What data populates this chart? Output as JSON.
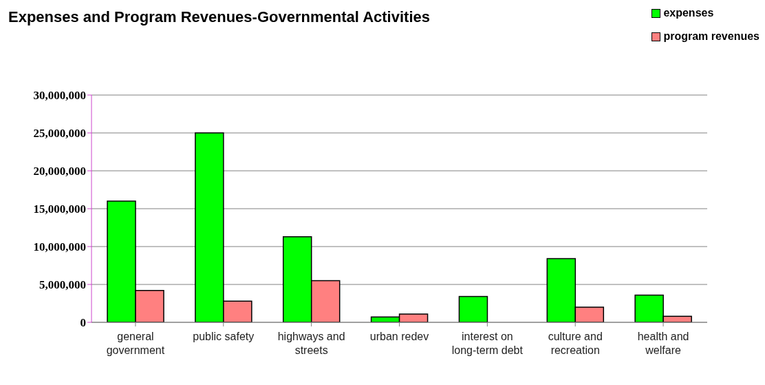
{
  "chart_data": {
    "type": "bar",
    "title": "Expenses and Program Revenues-Governmental Activities",
    "categories": [
      "general government",
      "public safety",
      "highways and streets",
      "urban redev",
      "interest on long-term debt",
      "culture and recreation",
      "health and welfare"
    ],
    "series": [
      {
        "name": "expenses",
        "color": "#00ff00",
        "values": [
          16000000,
          25000000,
          11300000,
          700000,
          3400000,
          8400000,
          3600000
        ]
      },
      {
        "name": "program revenues",
        "color": "#ff8080",
        "values": [
          4200000,
          2800000,
          5500000,
          1100000,
          0,
          2000000,
          800000
        ]
      }
    ],
    "ylim": [
      0,
      30000000
    ],
    "yticks": [
      0,
      {
        "value": 5000000,
        "label": "5,000,000"
      },
      {
        "value": 10000000,
        "label": "10,000,000"
      },
      {
        "value": 15000000,
        "label": "15,000,000"
      },
      {
        "value": 20000000,
        "label": "20,000,000"
      },
      {
        "value": 25000000,
        "label": "25,000,000"
      },
      {
        "value": 30000000,
        "label": "30,000,000"
      }
    ],
    "grid": "y",
    "legend": "top right"
  }
}
